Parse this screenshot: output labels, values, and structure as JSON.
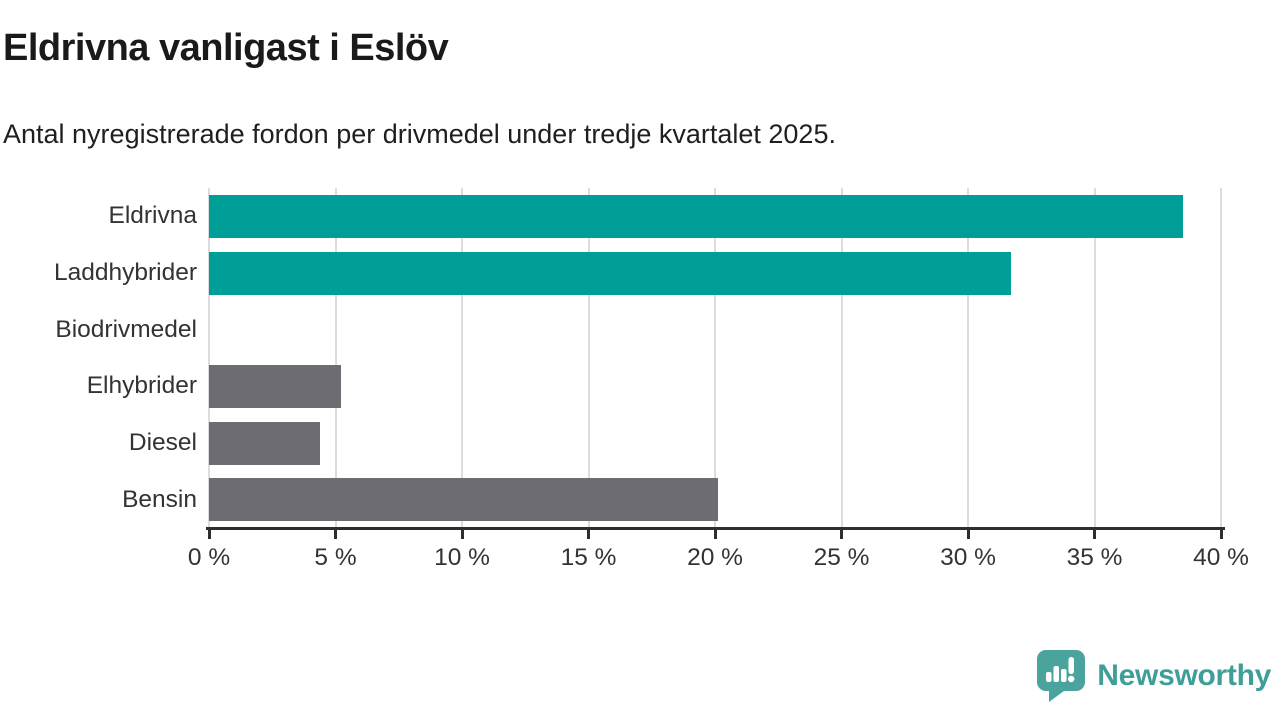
{
  "chart_data": {
    "type": "bar",
    "orientation": "horizontal",
    "title": "Eldrivna vanligast i Eslöv",
    "subtitle": "Antal nyregistrerade fordon per drivmedel under tredje kvartalet 2025.",
    "categories": [
      "Eldrivna",
      "Laddhybrider",
      "Biodrivmedel",
      "Elhybrider",
      "Diesel",
      "Bensin"
    ],
    "values": [
      38.5,
      31.7,
      0,
      5.2,
      4.4,
      20.1
    ],
    "unit": "%",
    "xlim": [
      0,
      40
    ],
    "x_ticks": [
      0,
      5,
      10,
      15,
      20,
      25,
      30,
      35,
      40
    ],
    "x_tick_labels": [
      "0 %",
      "5 %",
      "10 %",
      "15 %",
      "20 %",
      "25 %",
      "30 %",
      "35 %",
      "40 %"
    ],
    "grid": "vertical",
    "legend": "none",
    "bar_colors": [
      "#009e98",
      "#009e98",
      "#009e98",
      "#6c6c72",
      "#6c6c72",
      "#6c6c72"
    ]
  },
  "colors": {
    "accent_teal": "#009e98",
    "neutral_gray": "#6c6c72",
    "gridline": "#dcdcdc",
    "axis": "#2e2e2e",
    "logo_teal": "#4ba39e",
    "wordmark_teal": "#3f9e98"
  },
  "footer": {
    "brand": "Newsworthy"
  }
}
